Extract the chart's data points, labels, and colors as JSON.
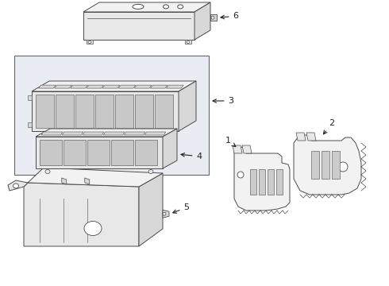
{
  "background_color": "#ffffff",
  "lc": "#4a4a4a",
  "lc2": "#666666",
  "fill_light": "#f2f2f2",
  "fill_mid": "#e8e8e8",
  "fill_dark": "#d8d8d8",
  "fill_box": "#eaecf4",
  "figsize": [
    4.9,
    3.6
  ],
  "dpi": 100,
  "label_fs": 8,
  "label_color": "#222222"
}
